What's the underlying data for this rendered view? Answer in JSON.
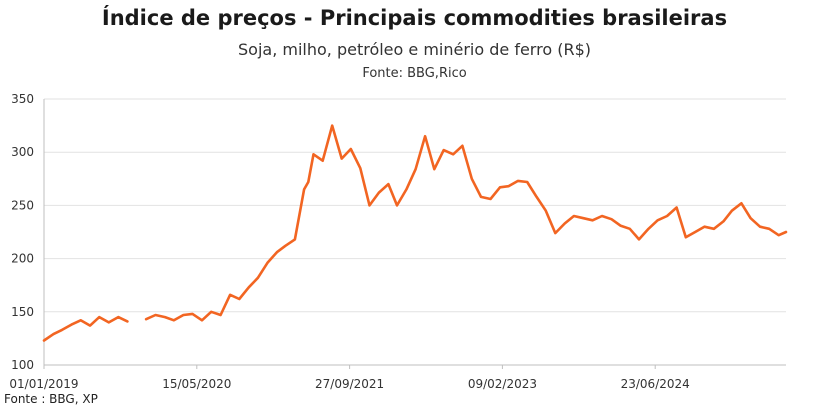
{
  "chart_data": {
    "type": "line",
    "title": "Índice de preços - Principais commodities brasileiras",
    "subtitle": "Soja, milho, petróleo e minério de ferro (R$)",
    "source_top": "Fonte: BBG,Rico",
    "source_bottom": "Fonte : BBG, XP",
    "xlabel": "",
    "ylabel": "",
    "ylim": [
      100,
      350
    ],
    "yticks": [
      "100",
      "150",
      "200",
      "250",
      "300",
      "350"
    ],
    "xlim": [
      "2019-01-01",
      "2025-08-25"
    ],
    "xticks": [
      "01/01/2019",
      "15/05/2020",
      "27/09/2021",
      "09/02/2023",
      "23/06/2024"
    ],
    "grid": true,
    "legend": "none",
    "color": "#F26522",
    "x": [
      "2019-01-01",
      "2019-02-01",
      "2019-03-01",
      "2019-04-01",
      "2019-05-01",
      "2019-06-01",
      "2019-07-01",
      "2019-08-01",
      "2019-09-01",
      "2019-10-01",
      "2019-11-15",
      "2019-12-01",
      "2020-01-01",
      "2020-02-01",
      "2020-03-01",
      "2020-04-01",
      "2020-05-01",
      "2020-06-01",
      "2020-07-01",
      "2020-08-01",
      "2020-09-01",
      "2020-10-01",
      "2020-11-01",
      "2020-12-01",
      "2021-01-01",
      "2021-02-01",
      "2021-03-01",
      "2021-04-01",
      "2021-05-01",
      "2021-05-15",
      "2021-06-01",
      "2021-07-01",
      "2021-08-01",
      "2021-09-01",
      "2021-10-01",
      "2021-11-01",
      "2021-12-01",
      "2022-01-01",
      "2022-02-01",
      "2022-03-01",
      "2022-04-01",
      "2022-05-01",
      "2022-06-01",
      "2022-07-01",
      "2022-08-01",
      "2022-09-01",
      "2022-10-01",
      "2022-11-01",
      "2022-12-01",
      "2023-01-01",
      "2023-02-01",
      "2023-03-01",
      "2023-04-01",
      "2023-05-01",
      "2023-06-01",
      "2023-07-01",
      "2023-08-01",
      "2023-09-01",
      "2023-10-01",
      "2023-11-01",
      "2023-12-01",
      "2024-01-01",
      "2024-02-01",
      "2024-03-01",
      "2024-04-01",
      "2024-05-01",
      "2024-06-01",
      "2024-07-01",
      "2024-08-01",
      "2024-09-01",
      "2024-10-01",
      "2024-11-01",
      "2024-12-01",
      "2025-01-01",
      "2025-02-01",
      "2025-03-01",
      "2025-04-01",
      "2025-05-01",
      "2025-06-01",
      "2025-07-01",
      "2025-08-01",
      "2025-08-25"
    ],
    "series": [
      {
        "values": [
          123,
          129,
          133,
          138,
          142,
          137,
          145,
          140,
          145,
          141,
          null,
          143,
          147,
          145,
          142,
          147,
          148,
          142,
          150,
          147,
          166,
          162,
          173,
          182,
          196,
          206,
          212,
          218,
          265,
          272,
          298,
          292,
          325,
          294,
          303,
          285,
          250,
          262,
          270,
          250,
          265,
          284,
          315,
          284,
          302,
          298,
          306,
          275,
          258,
          256,
          267,
          268,
          273,
          272,
          258,
          245,
          224,
          233,
          240,
          238,
          236,
          240,
          237,
          231,
          228,
          218,
          228,
          236,
          240,
          248,
          220,
          225,
          230,
          228,
          235,
          245,
          252,
          238,
          230,
          228,
          222,
          225
        ]
      }
    ]
  }
}
